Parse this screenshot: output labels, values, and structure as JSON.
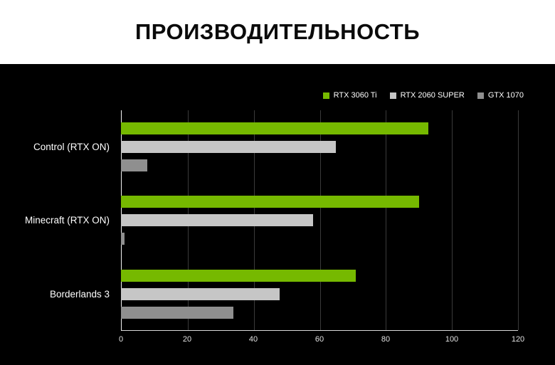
{
  "title": "ПРОИЗВОДИТЕЛЬНОСТЬ",
  "chart_data": {
    "type": "bar",
    "orientation": "horizontal",
    "title": "ПРОИЗВОДИТЕЛЬНОСТЬ",
    "categories": [
      "Control (RTX ON)",
      "Minecraft (RTX ON)",
      "Borderlands 3"
    ],
    "series": [
      {
        "name": "RTX 3060 Ti",
        "color": "#76b900",
        "values": [
          93,
          90,
          71
        ]
      },
      {
        "name": "RTX 2060 SUPER",
        "color": "#c6c6c6",
        "values": [
          65,
          58,
          48
        ]
      },
      {
        "name": "GTX 1070",
        "color": "#8f8f8f",
        "values": [
          8,
          1,
          34
        ]
      }
    ],
    "xlim": [
      0,
      120
    ],
    "xticks": [
      0,
      20,
      40,
      60,
      80,
      100,
      120
    ],
    "grid": true,
    "legend_position": "top-right",
    "plot_background": "#000000",
    "header_background": "#ffffff",
    "xlabel": "",
    "ylabel": ""
  }
}
